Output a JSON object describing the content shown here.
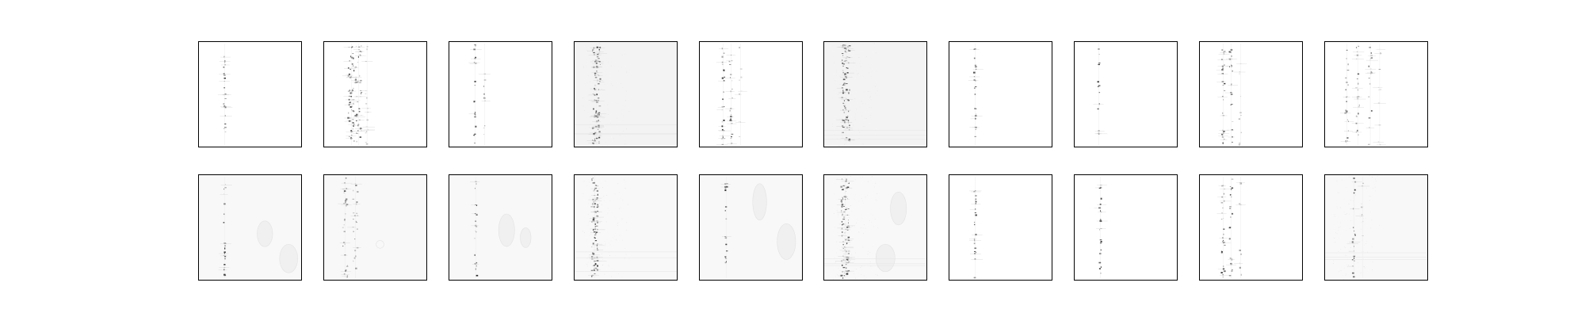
{
  "figure": {
    "background": "#ffffff",
    "frame_color": "#000000",
    "rows": 2,
    "columns": 10,
    "panels": [
      {
        "row": 1,
        "col": 1,
        "style": "sparse-single-column",
        "background_tone": "white"
      },
      {
        "row": 1,
        "col": 2,
        "style": "dense-multi-column-speckle",
        "background_tone": "white"
      },
      {
        "row": 1,
        "col": 3,
        "style": "sparse-two-columns",
        "background_tone": "white"
      },
      {
        "row": 1,
        "col": 4,
        "style": "noisy-vertical-band",
        "background_tone": "light-grey"
      },
      {
        "row": 1,
        "col": 5,
        "style": "clustered-columns",
        "background_tone": "white"
      },
      {
        "row": 1,
        "col": 6,
        "style": "noisy-vertical-band",
        "background_tone": "light-grey"
      },
      {
        "row": 1,
        "col": 7,
        "style": "sparse-single-column",
        "background_tone": "white"
      },
      {
        "row": 1,
        "col": 8,
        "style": "very-sparse-column",
        "background_tone": "white"
      },
      {
        "row": 1,
        "col": 9,
        "style": "clustered-columns",
        "background_tone": "white"
      },
      {
        "row": 1,
        "col": 10,
        "style": "wide-scattered-columns",
        "background_tone": "white"
      },
      {
        "row": 2,
        "col": 1,
        "style": "sparse-single-column-with-blobs",
        "background_tone": "off-white"
      },
      {
        "row": 2,
        "col": 2,
        "style": "scattered-speckle-with-ring",
        "background_tone": "off-white"
      },
      {
        "row": 2,
        "col": 3,
        "style": "sparse-column-with-blobs",
        "background_tone": "off-white"
      },
      {
        "row": 2,
        "col": 4,
        "style": "dense-vertical-band",
        "background_tone": "off-white"
      },
      {
        "row": 2,
        "col": 5,
        "style": "sparse-column-with-blobs",
        "background_tone": "off-white"
      },
      {
        "row": 2,
        "col": 6,
        "style": "dense-vertical-band-with-blob",
        "background_tone": "off-white"
      },
      {
        "row": 2,
        "col": 7,
        "style": "sparse-single-column",
        "background_tone": "white"
      },
      {
        "row": 2,
        "col": 8,
        "style": "sparse-single-column",
        "background_tone": "white"
      },
      {
        "row": 2,
        "col": 9,
        "style": "clustered-columns",
        "background_tone": "white"
      },
      {
        "row": 2,
        "col": 10,
        "style": "sparse-column-with-faint-band",
        "background_tone": "off-white"
      }
    ]
  }
}
